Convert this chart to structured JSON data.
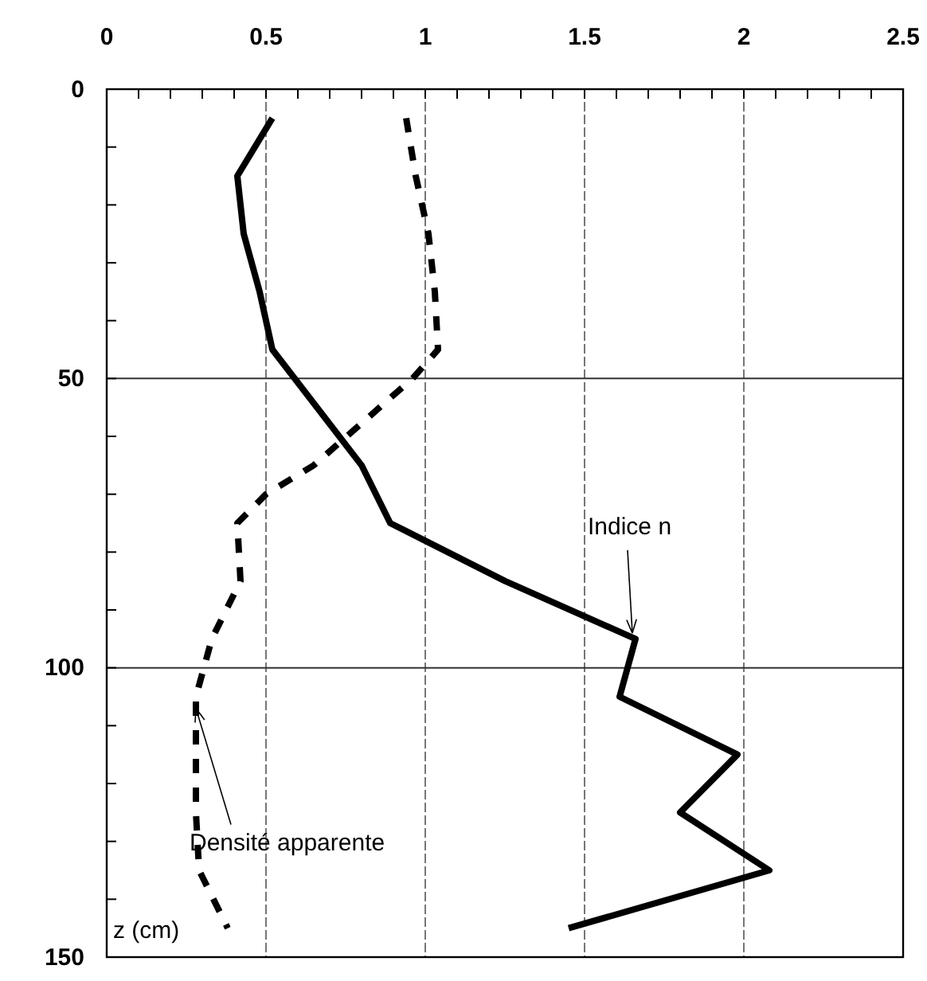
{
  "chart_data": {
    "type": "line",
    "orientation": "horizontal",
    "ylabel": "z (cm)",
    "xlim": [
      0,
      2.5
    ],
    "xticks": [
      0,
      {
        "value": 0.1,
        "label": null
      },
      {
        "value": 0.2,
        "label": null
      },
      {
        "value": 0.3,
        "label": null
      },
      {
        "value": 0.4,
        "label": null
      },
      0.5,
      {
        "value": 0.6,
        "label": null
      },
      {
        "value": 0.7,
        "label": null
      },
      {
        "value": 0.8,
        "label": null
      },
      {
        "value": 0.9,
        "label": null
      },
      1,
      {
        "value": 1.1,
        "label": null
      },
      {
        "value": 1.2,
        "label": null
      },
      {
        "value": 1.3,
        "label": null
      },
      {
        "value": 1.4,
        "label": null
      },
      1.5,
      {
        "value": 1.6,
        "label": null
      },
      {
        "value": 1.7,
        "label": null
      },
      {
        "value": 1.8,
        "label": null
      },
      {
        "value": 1.9,
        "label": null
      },
      2,
      {
        "value": 2.1,
        "label": null
      },
      {
        "value": 2.2,
        "label": null
      },
      {
        "value": 2.3,
        "label": null
      },
      {
        "value": 2.4,
        "label": null
      },
      2.5
    ],
    "ylim": [
      150,
      0
    ],
    "yticks": [
      0,
      {
        "value": 10,
        "label": null
      },
      {
        "value": 20,
        "label": null
      },
      {
        "value": 30,
        "label": null
      },
      {
        "value": 40,
        "label": null
      },
      50,
      {
        "value": 60,
        "label": null
      },
      {
        "value": 70,
        "label": null
      },
      {
        "value": 80,
        "label": null
      },
      {
        "value": 90,
        "label": null
      },
      100,
      {
        "value": 110,
        "label": null
      },
      {
        "value": 120,
        "label": null
      },
      {
        "value": 130,
        "label": null
      },
      {
        "value": 140,
        "label": null
      },
      150
    ],
    "grid": true,
    "series": [
      {
        "color": "#000000",
        "line_style": "solid",
        "x": [
          5,
          15,
          25,
          35,
          45,
          65,
          75,
          85,
          95,
          105,
          115,
          125,
          135,
          145
        ],
        "values": [
          0.52,
          0.41,
          0.43,
          0.48,
          0.52,
          0.8,
          0.89,
          1.25,
          1.66,
          1.61,
          1.98,
          1.8,
          2.08,
          1.45
        ]
      },
      {
        "color": "#000000",
        "line_style": "dashed",
        "x": [
          5,
          15,
          25,
          35,
          45,
          50,
          65,
          70,
          75,
          85,
          95,
          105,
          115,
          125,
          135,
          145
        ],
        "values": [
          0.94,
          0.97,
          1.01,
          1.03,
          1.04,
          0.96,
          0.65,
          0.5,
          0.41,
          0.42,
          0.33,
          0.28,
          0.28,
          0.28,
          0.29,
          0.38
        ]
      }
    ],
    "annotations": [
      {
        "text": "Indice n",
        "x": 1.65,
        "y": 94
      },
      {
        "text": "Densité apparente",
        "x": 0.28,
        "y": 107
      }
    ]
  }
}
